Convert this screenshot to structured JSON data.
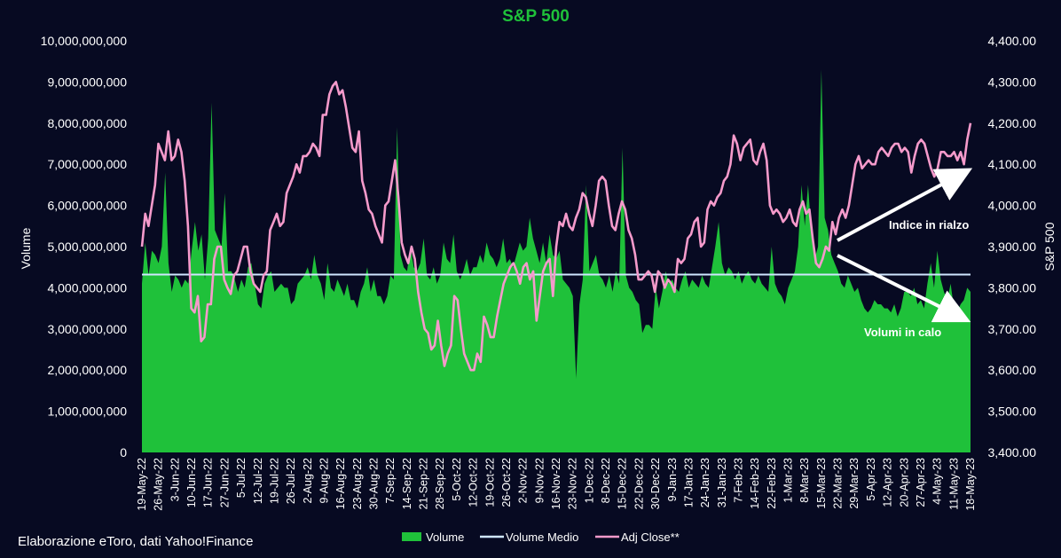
{
  "chart_data": {
    "type": "area+line",
    "title": "S&P 500",
    "ylabel_left": "Volume",
    "ylabel_right": "S&P 500",
    "ylim_left": [
      0,
      10000000000
    ],
    "ylim_right": [
      3400,
      4400
    ],
    "left_ticks": [
      "0",
      "1,000,000,000",
      "2,000,000,000",
      "3,000,000,000",
      "4,000,000,000",
      "5,000,000,000",
      "6,000,000,000",
      "7,000,000,000",
      "8,000,000,000",
      "9,000,000,000",
      "10,000,000,000"
    ],
    "right_ticks": [
      "3,400.00",
      "3,500.00",
      "3,600.00",
      "3,700.00",
      "3,800.00",
      "3,900.00",
      "4,000.00",
      "4,100.00",
      "4,200.00",
      "4,300.00",
      "4,400.00"
    ],
    "x_labels": [
      "19-May-22",
      "26-May-22",
      "3-Jun-22",
      "10-Jun-22",
      "17-Jun-22",
      "27-Jun-22",
      "5-Jul-22",
      "12-Jul-22",
      "19-Jul-22",
      "26-Jul-22",
      "2-Aug-22",
      "9-Aug-22",
      "16-Aug-22",
      "23-Aug-22",
      "30-Aug-22",
      "7-Sep-22",
      "14-Sep-22",
      "21-Sep-22",
      "28-Sep-22",
      "5-Oct-22",
      "12-Oct-22",
      "19-Oct-22",
      "26-Oct-22",
      "2-Nov-22",
      "9-Nov-22",
      "16-Nov-22",
      "23-Nov-22",
      "1-Dec-22",
      "8-Dec-22",
      "15-Dec-22",
      "22-Dec-22",
      "30-Dec-22",
      "9-Jan-23",
      "17-Jan-23",
      "24-Jan-23",
      "31-Jan-23",
      "7-Feb-23",
      "14-Feb-23",
      "22-Feb-23",
      "1-Mar-23",
      "8-Mar-23",
      "15-Mar-23",
      "22-Mar-23",
      "29-Mar-23",
      "5-Apr-23",
      "12-Apr-23",
      "20-Apr-23",
      "27-Apr-23",
      "4-May-23",
      "11-May-23",
      "18-May-23"
    ],
    "series": [
      {
        "name": "Volume",
        "color": "#1fc13a",
        "values": [
          4100000000,
          5100000000,
          4300000000,
          4900000000,
          4800000000,
          4600000000,
          5000000000,
          6800000000,
          4600000000,
          3900000000,
          4300000000,
          4200000000,
          4000000000,
          4200000000,
          4100000000,
          4900000000,
          5600000000,
          4900000000,
          5300000000,
          4200000000,
          5200000000,
          8500000000,
          5400000000,
          5200000000,
          5000000000,
          6300000000,
          4400000000,
          4400000000,
          4200000000,
          3900000000,
          4200000000,
          4000000000,
          4500000000,
          4600000000,
          4100000000,
          3600000000,
          3500000000,
          4100000000,
          4300000000,
          4400000000,
          3900000000,
          4000000000,
          4100000000,
          4000000000,
          4000000000,
          3600000000,
          3700000000,
          4100000000,
          4200000000,
          4300000000,
          4500000000,
          4200000000,
          4800000000,
          4300000000,
          4100000000,
          3700000000,
          4600000000,
          4000000000,
          3900000000,
          4200000000,
          4000000000,
          3800000000,
          4100000000,
          3700000000,
          3700000000,
          3500000000,
          3900000000,
          4100000000,
          4500000000,
          3900000000,
          4200000000,
          3800000000,
          3800000000,
          3600000000,
          3800000000,
          4300000000,
          4200000000,
          7900000000,
          4800000000,
          4500000000,
          4400000000,
          5000000000,
          4500000000,
          4400000000,
          4600000000,
          5200000000,
          4300000000,
          4200000000,
          4500000000,
          4100000000,
          4300000000,
          5100000000,
          4700000000,
          4600000000,
          5300000000,
          4400000000,
          4200000000,
          4400000000,
          4700000000,
          4300000000,
          4500000000,
          4500000000,
          4800000000,
          4600000000,
          5100000000,
          4800000000,
          4700000000,
          4500000000,
          4700000000,
          5200000000,
          4600000000,
          4700000000,
          4500000000,
          4800000000,
          5100000000,
          4900000000,
          5000000000,
          5700000000,
          5200000000,
          4900000000,
          4600000000,
          5100000000,
          4600000000,
          5300000000,
          4800000000,
          4700000000,
          4900000000,
          4200000000,
          4100000000,
          4000000000,
          3800000000,
          1800000000,
          3600000000,
          4200000000,
          6500000000,
          4400000000,
          4600000000,
          4800000000,
          4300000000,
          4200000000,
          4000000000,
          4300000000,
          3900000000,
          4400000000,
          4100000000,
          7400000000,
          4300000000,
          4000000000,
          3900000000,
          3700000000,
          3600000000,
          2900000000,
          3100000000,
          3100000000,
          3000000000,
          4000000000,
          3500000000,
          3900000000,
          4400000000,
          4100000000,
          4200000000,
          4000000000,
          3900000000,
          4200000000,
          4400000000,
          4000000000,
          4200000000,
          4100000000,
          4000000000,
          4300000000,
          4100000000,
          4000000000,
          4500000000,
          5000000000,
          5600000000,
          4600000000,
          4300000000,
          4500000000,
          4400000000,
          4200000000,
          4400000000,
          4100000000,
          4300000000,
          4400000000,
          4200000000,
          4100000000,
          4300000000,
          4100000000,
          4000000000,
          3900000000,
          5000000000,
          4100000000,
          3900000000,
          3800000000,
          3600000000,
          4000000000,
          4200000000,
          4400000000,
          5000000000,
          6500000000,
          5500000000,
          6500000000,
          5300000000,
          4700000000,
          5000000000,
          9300000000,
          5700000000,
          5400000000,
          4800000000,
          4600000000,
          4400000000,
          4100000000,
          4000000000,
          4300000000,
          4100000000,
          3900000000,
          4000000000,
          3700000000,
          3500000000,
          3400000000,
          3500000000,
          3700000000,
          3600000000,
          3600000000,
          3500000000,
          3500000000,
          3400000000,
          3600000000,
          3300000000,
          3500000000,
          3900000000,
          3900000000,
          3800000000,
          4000000000,
          3600000000,
          3700000000,
          3500000000,
          4100000000,
          4600000000,
          4000000000,
          4900000000,
          4200000000,
          3900000000,
          3700000000,
          4100000000,
          3500000000,
          3400000000,
          3600000000,
          3700000000,
          4000000000,
          3900000000
        ]
      },
      {
        "name": "Volume Medio",
        "color": "#cfe6ff",
        "value": 4320000000
      },
      {
        "name": "Adj Close**",
        "color": "#f59acb",
        "values": [
          3900,
          3980,
          3950,
          4000,
          4050,
          4150,
          4130,
          4110,
          4180,
          4110,
          4120,
          4160,
          4130,
          4060,
          3950,
          3750,
          3740,
          3780,
          3670,
          3680,
          3760,
          3760,
          3870,
          3900,
          3900,
          3820,
          3800,
          3785,
          3830,
          3840,
          3870,
          3900,
          3900,
          3840,
          3810,
          3800,
          3790,
          3830,
          3840,
          3940,
          3960,
          3980,
          3950,
          3960,
          4030,
          4050,
          4070,
          4100,
          4080,
          4120,
          4120,
          4130,
          4150,
          4140,
          4120,
          4220,
          4220,
          4270,
          4290,
          4300,
          4270,
          4280,
          4240,
          4190,
          4140,
          4130,
          4180,
          4060,
          4030,
          3990,
          3980,
          3950,
          3930,
          3910,
          4000,
          4010,
          4060,
          4110,
          4020,
          3910,
          3880,
          3860,
          3900,
          3870,
          3790,
          3740,
          3700,
          3690,
          3650,
          3660,
          3720,
          3660,
          3610,
          3640,
          3660,
          3780,
          3770,
          3700,
          3640,
          3620,
          3600,
          3600,
          3640,
          3620,
          3730,
          3710,
          3680,
          3680,
          3730,
          3770,
          3810,
          3830,
          3850,
          3860,
          3840,
          3810,
          3850,
          3860,
          3820,
          3840,
          3720,
          3780,
          3840,
          3860,
          3870,
          3780,
          3900,
          3960,
          3950,
          3980,
          3950,
          3940,
          3970,
          3990,
          4030,
          4020,
          3980,
          3950,
          4000,
          4060,
          4070,
          4060,
          4000,
          3950,
          3940,
          3980,
          4010,
          3990,
          3940,
          3920,
          3880,
          3820,
          3820,
          3830,
          3840,
          3830,
          3790,
          3840,
          3830,
          3800,
          3820,
          3810,
          3790,
          3870,
          3860,
          3870,
          3920,
          3930,
          3960,
          3970,
          3900,
          3910,
          3990,
          4010,
          4000,
          4020,
          4030,
          4060,
          4070,
          4100,
          4170,
          4150,
          4110,
          4140,
          4150,
          4160,
          4110,
          4100,
          4130,
          4150,
          4110,
          4000,
          3980,
          3990,
          3980,
          3960,
          3970,
          3990,
          3960,
          3950,
          3990,
          4010,
          3980,
          3990,
          3920,
          3860,
          3850,
          3870,
          3900,
          3890,
          3960,
          3930,
          3970,
          3990,
          3970,
          4000,
          4050,
          4100,
          4120,
          4090,
          4100,
          4110,
          4100,
          4100,
          4130,
          4140,
          4130,
          4120,
          4140,
          4150,
          4150,
          4130,
          4140,
          4130,
          4080,
          4120,
          4150,
          4160,
          4150,
          4120,
          4090,
          4070,
          4090,
          4130,
          4130,
          4120,
          4120,
          4130,
          4110,
          4130,
          4100,
          4160,
          4200
        ]
      }
    ],
    "annotations": [
      {
        "text": "Indice in rialzo",
        "direction": "up"
      },
      {
        "text": "Volumi in calo",
        "direction": "down"
      }
    ],
    "legend": [
      "Volume",
      "Volume Medio",
      "Adj Close**"
    ],
    "legend_position": "bottom-center",
    "grid": false
  },
  "footer": {
    "source": "Elaborazione eToro, dati Yahoo!Finance"
  }
}
